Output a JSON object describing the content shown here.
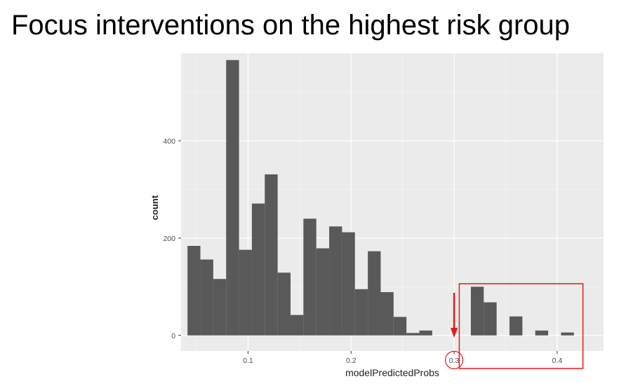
{
  "slide": {
    "title": "Focus interventions on the highest risk group"
  },
  "chart_data": {
    "type": "bar",
    "subtype": "histogram",
    "title": "",
    "xlabel": "modelPredictedProbs",
    "ylabel": "count",
    "xlim": [
      0.035,
      0.445
    ],
    "ylim": [
      -32,
      580
    ],
    "bin_width": 0.0125,
    "x_ticks": [
      0.1,
      0.2,
      0.3,
      0.4
    ],
    "x_tick_labels": [
      "0.1",
      "0.2",
      "0.3",
      "0.4"
    ],
    "y_ticks": [
      0,
      200,
      400
    ],
    "y_tick_labels": [
      "0",
      "200",
      "400"
    ],
    "grid": true,
    "legend": "none",
    "bar_color": "#595959",
    "panel_color": "#ebebeb",
    "bins": [
      {
        "x": 0.0475,
        "count": 184
      },
      {
        "x": 0.06,
        "count": 156
      },
      {
        "x": 0.0725,
        "count": 116
      },
      {
        "x": 0.085,
        "count": 566
      },
      {
        "x": 0.0975,
        "count": 176
      },
      {
        "x": 0.11,
        "count": 271
      },
      {
        "x": 0.1225,
        "count": 331
      },
      {
        "x": 0.135,
        "count": 129
      },
      {
        "x": 0.1475,
        "count": 42
      },
      {
        "x": 0.16,
        "count": 240
      },
      {
        "x": 0.1725,
        "count": 179
      },
      {
        "x": 0.185,
        "count": 224
      },
      {
        "x": 0.1975,
        "count": 212
      },
      {
        "x": 0.21,
        "count": 95
      },
      {
        "x": 0.2225,
        "count": 173
      },
      {
        "x": 0.235,
        "count": 89
      },
      {
        "x": 0.2475,
        "count": 38
      },
      {
        "x": 0.26,
        "count": 5
      },
      {
        "x": 0.2725,
        "count": 10
      },
      {
        "x": 0.2975,
        "count": 0
      },
      {
        "x": 0.3225,
        "count": 100
      },
      {
        "x": 0.335,
        "count": 68
      },
      {
        "x": 0.3475,
        "count": 0
      },
      {
        "x": 0.36,
        "count": 39
      },
      {
        "x": 0.3725,
        "count": 0
      },
      {
        "x": 0.385,
        "count": 10
      },
      {
        "x": 0.3975,
        "count": 0
      },
      {
        "x": 0.41,
        "count": 6
      }
    ],
    "annotations": {
      "threshold": 0.3,
      "threshold_label": "0.3",
      "highlight_xrange": [
        0.305,
        0.425
      ],
      "annotation_color": "#e31a1c"
    }
  }
}
